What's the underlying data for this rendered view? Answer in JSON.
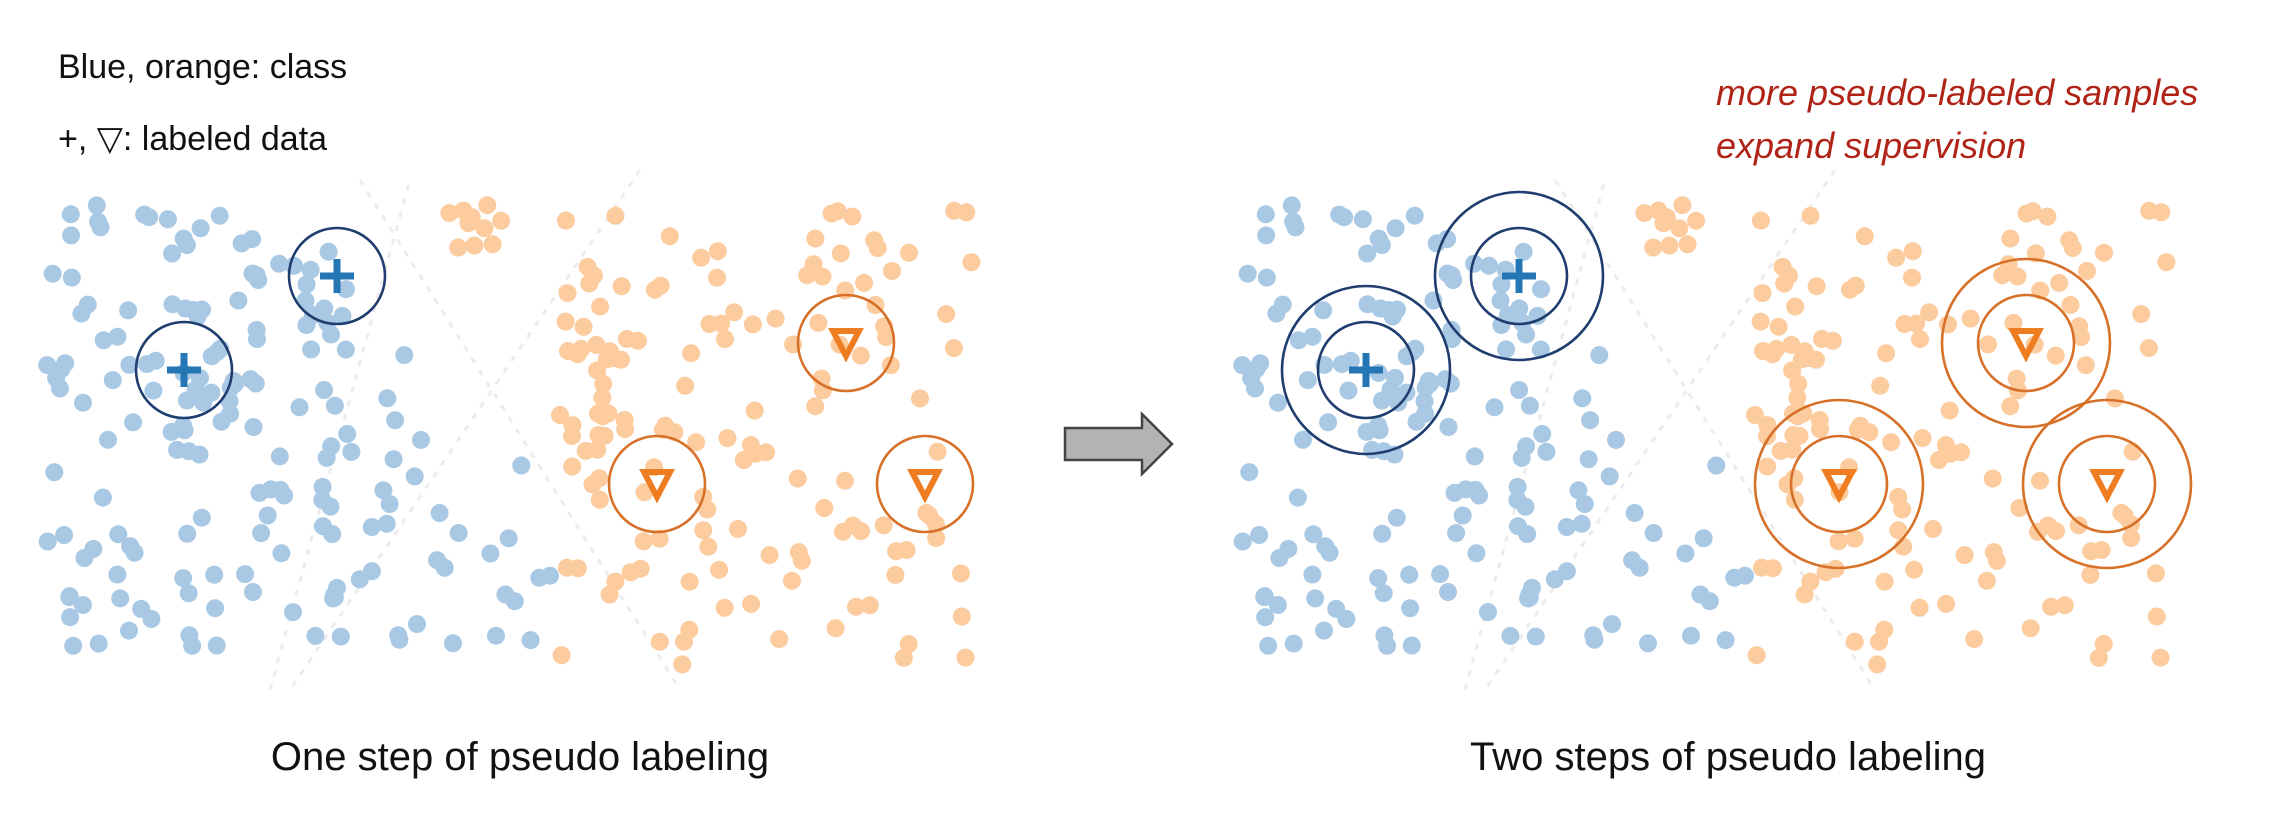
{
  "legend": {
    "line1": "Blue, orange: class",
    "line2": "+, ▽: labeled data"
  },
  "note": {
    "line1": "more pseudo-labeled samples",
    "line2": "expand supervision"
  },
  "panels": [
    {
      "caption": "One step of pseudo labeling"
    },
    {
      "caption": "Two steps of pseudo labeling"
    }
  ],
  "colors": {
    "blue_point": "#a8c8e4",
    "orange_point": "#fccb9e",
    "blue_marker": "#2476b4",
    "orange_marker": "#ee7d22",
    "blue_ring": "#1f3d6e",
    "orange_ring": "#d77028",
    "note_text": "#b02418",
    "arrow_fill": "#b3b3b3",
    "arrow_stroke": "#444444"
  },
  "icons": {
    "labeled_class_blue": "plus-icon",
    "labeled_class_orange": "triangle-down-icon",
    "transition": "right-arrow-icon"
  }
}
